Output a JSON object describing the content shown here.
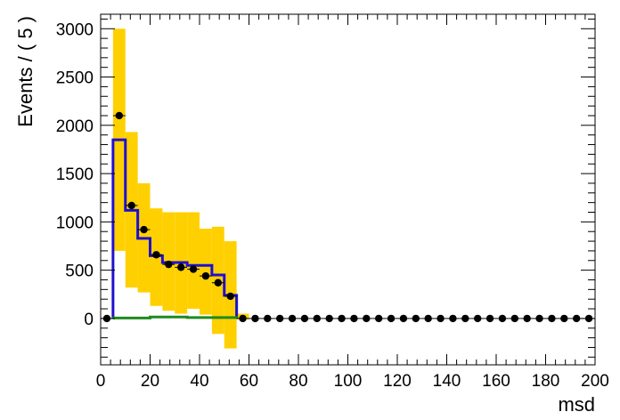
{
  "chart_data": {
    "type": "histogram",
    "xlabel": "msd",
    "ylabel": "Events / ( 5 )",
    "xlim": [
      0,
      200
    ],
    "ylim": [
      -480,
      3150
    ],
    "x_ticks": [
      0,
      20,
      40,
      60,
      80,
      100,
      120,
      140,
      160,
      180,
      200
    ],
    "y_ticks": [
      0,
      500,
      1000,
      1500,
      2000,
      2500,
      3000
    ],
    "bin_width": 5,
    "uncertainty_band": {
      "color": "#ffd000",
      "bins": [
        {
          "lo": 5,
          "hi": 10,
          "low": 700,
          "high": 3000
        },
        {
          "lo": 10,
          "hi": 15,
          "low": 320,
          "high": 1930
        },
        {
          "lo": 15,
          "hi": 20,
          "low": 270,
          "high": 1400
        },
        {
          "lo": 20,
          "hi": 25,
          "low": 130,
          "high": 1140
        },
        {
          "lo": 25,
          "hi": 30,
          "low": 80,
          "high": 1100
        },
        {
          "lo": 30,
          "hi": 35,
          "low": 50,
          "high": 1100
        },
        {
          "lo": 35,
          "hi": 40,
          "low": 100,
          "high": 1100
        },
        {
          "lo": 40,
          "hi": 45,
          "low": 40,
          "high": 930
        },
        {
          "lo": 45,
          "hi": 50,
          "low": -160,
          "high": 950
        },
        {
          "lo": 50,
          "hi": 55,
          "low": -310,
          "high": 800
        },
        {
          "lo": 55,
          "hi": 60,
          "low": -10,
          "high": 50
        }
      ]
    },
    "series": [
      {
        "kind": "step",
        "color": "#1f10d0",
        "edges": [
          5,
          10,
          15,
          20,
          25,
          30,
          35,
          40,
          45,
          50,
          55
        ],
        "values": [
          1850,
          1120,
          830,
          650,
          580,
          580,
          550,
          550,
          450,
          240
        ]
      },
      {
        "kind": "step",
        "color": "#1d8a1d",
        "edges": [
          5,
          20,
          35,
          55
        ],
        "values": [
          5,
          15,
          10
        ]
      },
      {
        "kind": "points",
        "color": "#000000",
        "x": [
          2.5,
          7.5,
          12.5,
          17.5,
          22.5,
          27.5,
          32.5,
          37.5,
          42.5,
          47.5,
          52.5,
          57.5,
          62.5,
          67.5,
          72.5,
          77.5,
          82.5,
          87.5,
          92.5,
          97.5,
          102.5,
          107.5,
          112.5,
          117.5,
          122.5,
          127.5,
          132.5,
          137.5,
          142.5,
          147.5,
          152.5,
          157.5,
          162.5,
          167.5,
          172.5,
          177.5,
          182.5,
          187.5,
          192.5,
          197.5
        ],
        "y": [
          0,
          2100,
          1170,
          920,
          660,
          560,
          530,
          510,
          440,
          370,
          230,
          0,
          0,
          0,
          0,
          0,
          0,
          0,
          0,
          0,
          0,
          0,
          0,
          0,
          0,
          0,
          0,
          0,
          0,
          0,
          0,
          0,
          0,
          0,
          0,
          0,
          0,
          0,
          0,
          0
        ]
      }
    ]
  }
}
